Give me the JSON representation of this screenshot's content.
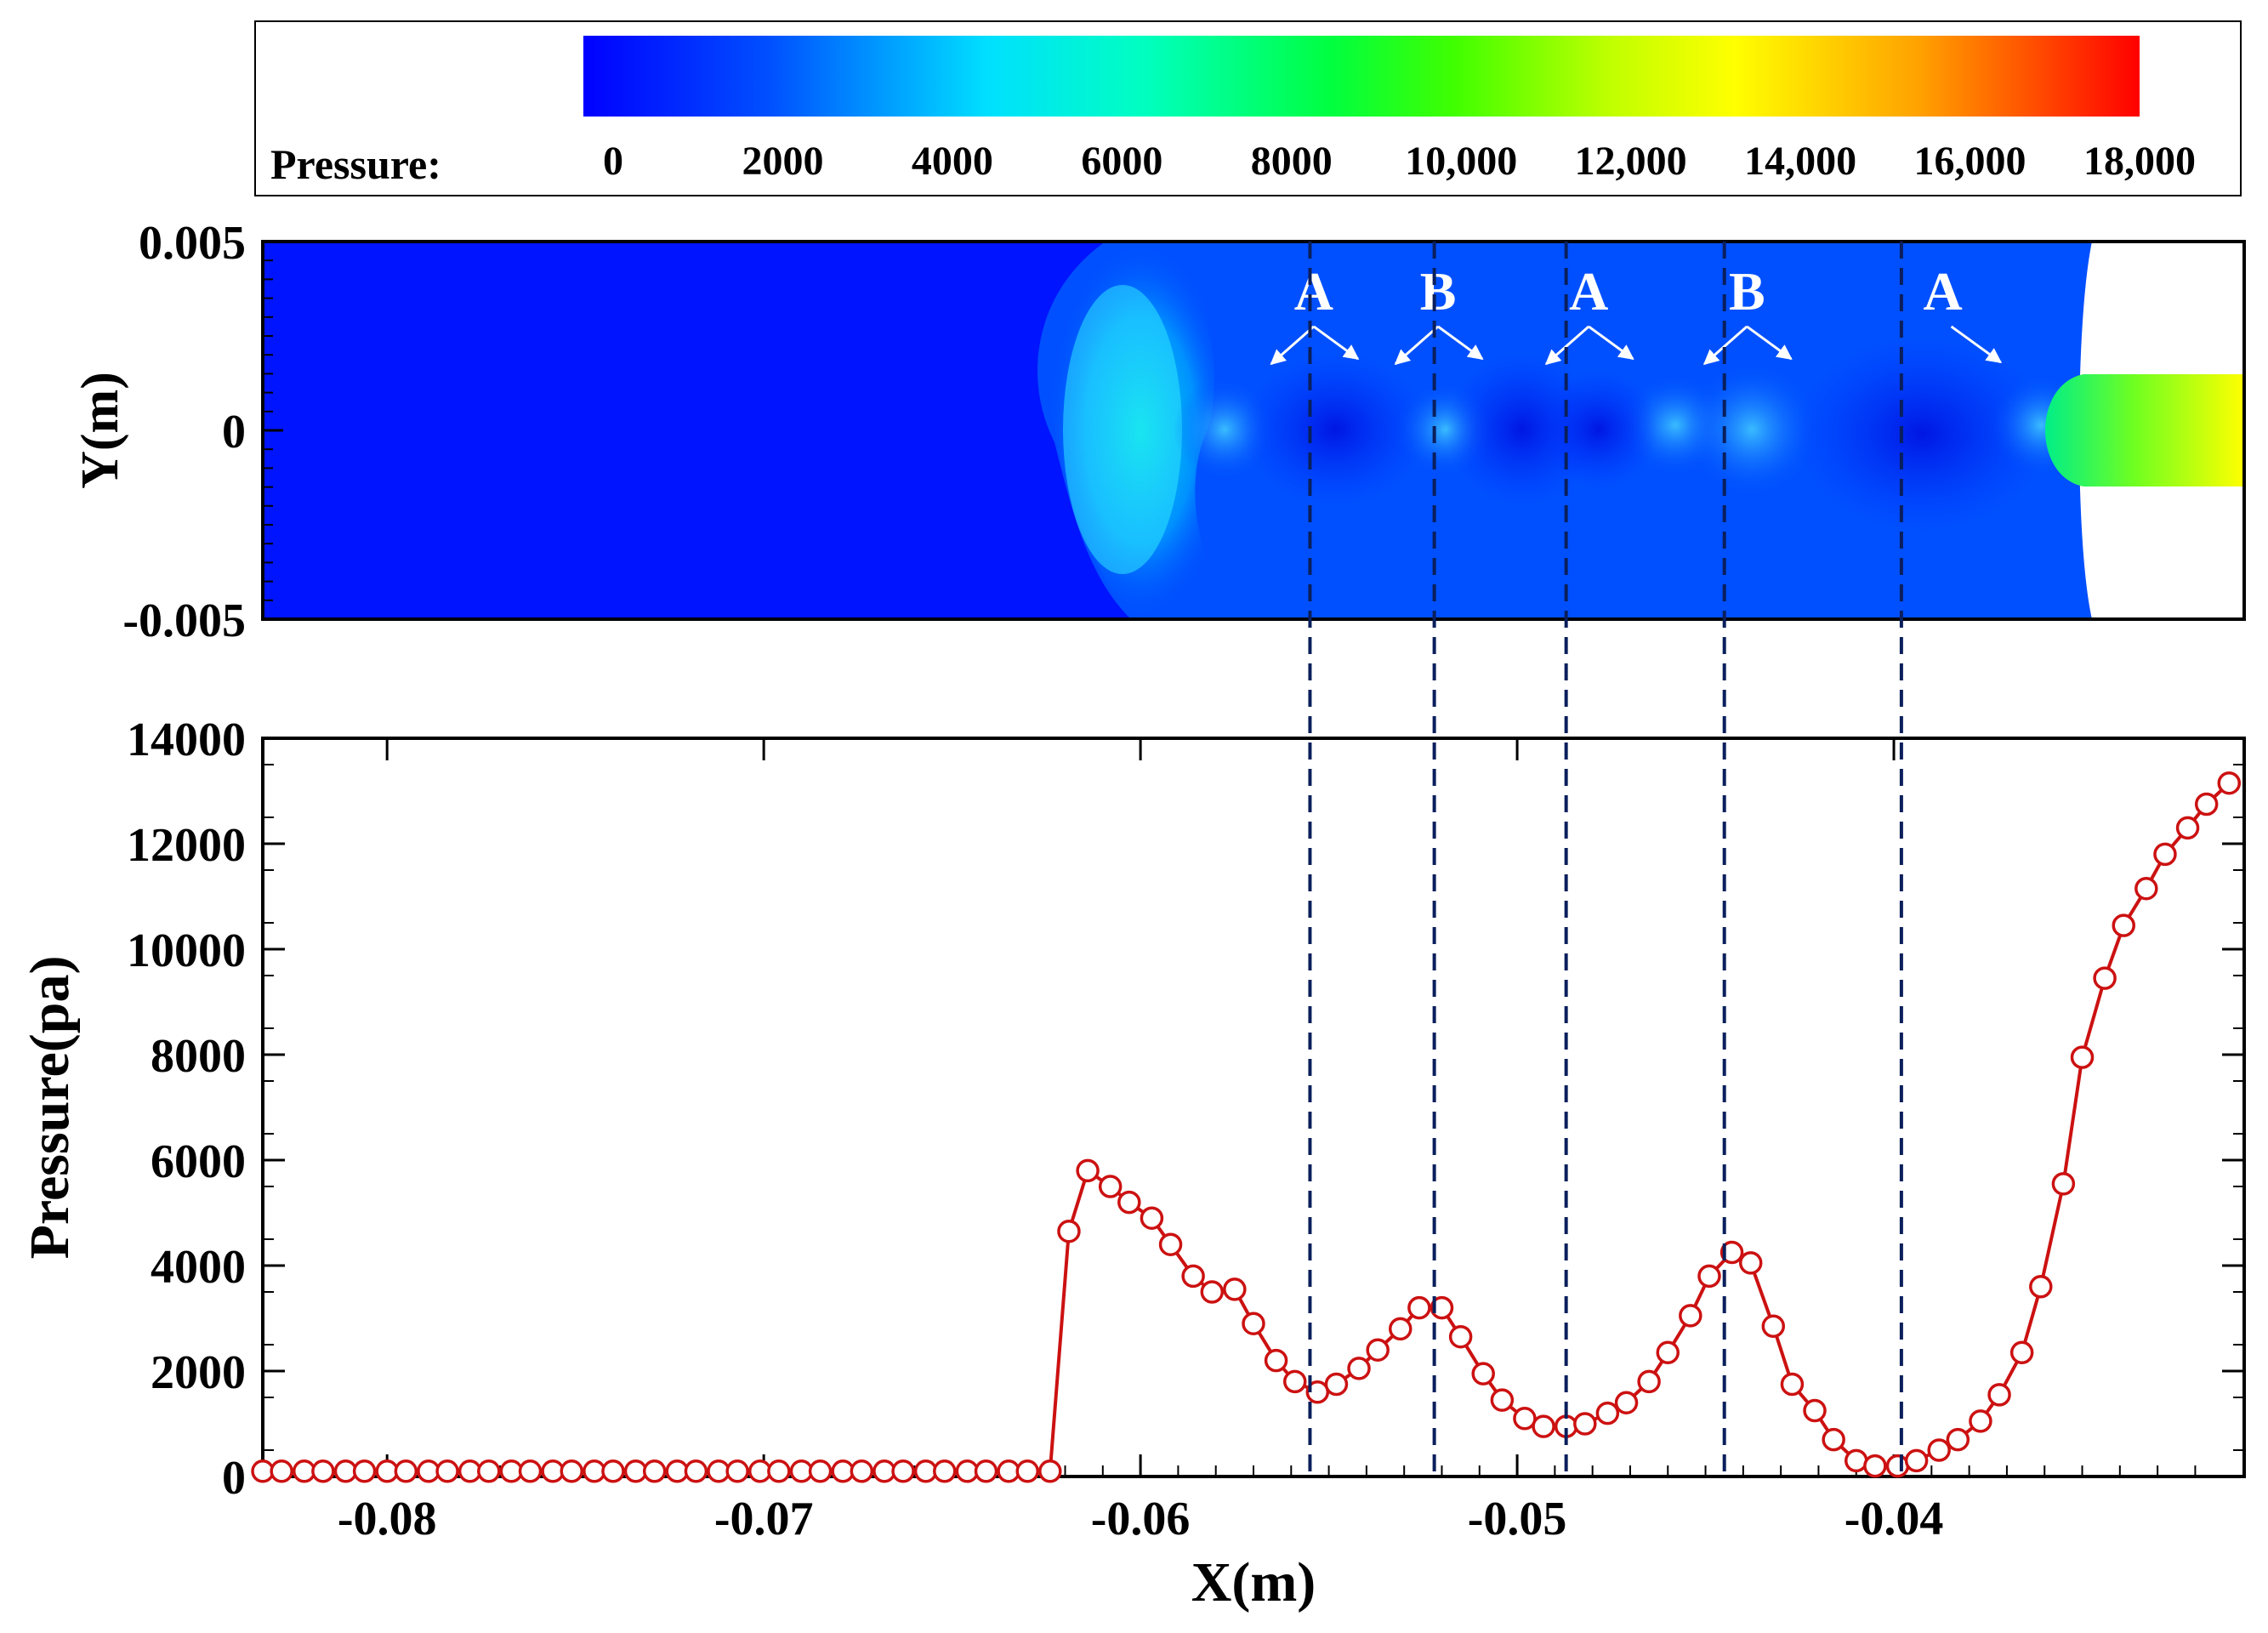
{
  "colorbar": {
    "label": "Pressure:",
    "ticks": [
      "0",
      "2000",
      "4000",
      "6000",
      "8000",
      "10,000",
      "12,000",
      "14,000",
      "16,000",
      "18,000"
    ],
    "tick_values": [
      0,
      2000,
      4000,
      6000,
      8000,
      10000,
      12000,
      14000,
      16000,
      18000
    ],
    "range": [
      0,
      18000
    ],
    "colors": [
      "#0000ff",
      "#0055ff",
      "#00c0ff",
      "#00ffee",
      "#00ff80",
      "#30ff00",
      "#a0ff00",
      "#ffff00",
      "#ffa000",
      "#ff0000"
    ]
  },
  "contour": {
    "ylabel": "Y(m)",
    "y_ticks": [
      "0.005",
      "0",
      "-0.005"
    ],
    "y_tick_values": [
      0.005,
      0,
      -0.005
    ],
    "ylim": [
      -0.005,
      0.005
    ],
    "xlim": [
      -0.0833,
      -0.0307
    ],
    "labels": [
      {
        "text": "A",
        "x": -0.0554,
        "y": 0.0032
      },
      {
        "text": "B",
        "x": -0.0521,
        "y": 0.0032
      },
      {
        "text": "A",
        "x": -0.0481,
        "y": 0.0032
      },
      {
        "text": "B",
        "x": -0.0439,
        "y": 0.0032
      },
      {
        "text": "A",
        "x": -0.0387,
        "y": 0.0032
      }
    ],
    "colors": {
      "background": "#0014ff",
      "mid": "#0050ff",
      "front": "#2de6ff",
      "jet_start": "#00ee88",
      "jet_end": "#ffff00"
    }
  },
  "dashed_lines_x": [
    -0.0555,
    -0.0522,
    -0.0487,
    -0.0445,
    -0.0398
  ],
  "chart_data": {
    "type": "line",
    "title": "",
    "xlabel": "X(m)",
    "ylabel": "Pressure(pa)",
    "xlim": [
      -0.0833,
      -0.0307
    ],
    "ylim": [
      0,
      14000
    ],
    "x_ticks": [
      "-0.08",
      "-0.07",
      "-0.06",
      "-0.05",
      "-0.04"
    ],
    "x_tick_values": [
      -0.08,
      -0.07,
      -0.06,
      -0.05,
      -0.04
    ],
    "y_ticks": [
      "0",
      "2000",
      "4000",
      "6000",
      "8000",
      "10000",
      "12000",
      "14000"
    ],
    "y_tick_values": [
      0,
      2000,
      4000,
      6000,
      8000,
      10000,
      12000,
      14000
    ],
    "line_color": "#cc1111",
    "series": [
      {
        "name": "Pressure",
        "x": [
          -0.0833,
          -0.0828,
          -0.0822,
          -0.0817,
          -0.0811,
          -0.0806,
          -0.08,
          -0.0795,
          -0.0789,
          -0.0784,
          -0.0778,
          -0.0773,
          -0.0767,
          -0.0762,
          -0.0756,
          -0.0751,
          -0.0745,
          -0.074,
          -0.0734,
          -0.0729,
          -0.0723,
          -0.0718,
          -0.0712,
          -0.0707,
          -0.0701,
          -0.0696,
          -0.069,
          -0.0685,
          -0.0679,
          -0.0674,
          -0.0668,
          -0.0663,
          -0.0657,
          -0.0652,
          -0.0646,
          -0.0641,
          -0.0635,
          -0.063,
          -0.0624,
          -0.0619,
          -0.0614,
          -0.0608,
          -0.0603,
          -0.0597,
          -0.0592,
          -0.0586,
          -0.0581,
          -0.0575,
          -0.057,
          -0.0564,
          -0.0559,
          -0.0553,
          -0.0548,
          -0.0542,
          -0.0537,
          -0.0531,
          -0.0526,
          -0.052,
          -0.0515,
          -0.0509,
          -0.0504,
          -0.0498,
          -0.0493,
          -0.0487,
          -0.0482,
          -0.0476,
          -0.0471,
          -0.0465,
          -0.046,
          -0.0454,
          -0.0449,
          -0.0443,
          -0.0438,
          -0.0432,
          -0.0427,
          -0.0421,
          -0.0416,
          -0.041,
          -0.0405,
          -0.0399,
          -0.0394,
          -0.0388,
          -0.0383,
          -0.0377,
          -0.0372,
          -0.0366,
          -0.0361,
          -0.0355,
          -0.035,
          -0.0344,
          -0.0339,
          -0.0333,
          -0.0328,
          -0.0322,
          -0.0317,
          -0.0311
        ],
        "values": [
          100,
          100,
          100,
          100,
          100,
          100,
          100,
          100,
          100,
          100,
          100,
          100,
          100,
          100,
          100,
          100,
          100,
          100,
          100,
          100,
          100,
          100,
          100,
          100,
          100,
          100,
          100,
          100,
          100,
          100,
          100,
          100,
          100,
          100,
          100,
          100,
          100,
          100,
          100,
          4650,
          5800,
          5500,
          5200,
          4900,
          4400,
          3800,
          3500,
          3550,
          2900,
          2200,
          1800,
          1600,
          1750,
          2050,
          2400,
          2800,
          3200,
          3200,
          2650,
          1950,
          1450,
          1100,
          950,
          950,
          1000,
          1200,
          1400,
          1800,
          2350,
          3050,
          3800,
          4250,
          4050,
          2850,
          1750,
          1250,
          700,
          300,
          200,
          200,
          300,
          500,
          700,
          1050,
          1550,
          2350,
          3600,
          5550,
          7950,
          9450,
          10450,
          11150,
          11800,
          12300,
          12750,
          13150
        ]
      }
    ]
  }
}
